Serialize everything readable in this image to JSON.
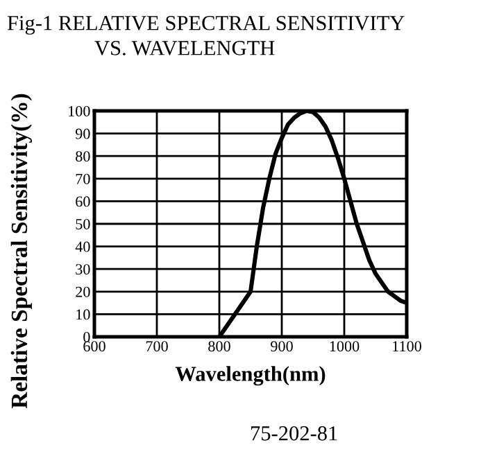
{
  "chart_data": {
    "type": "line",
    "title": "Fig-1 RELATIVE SPECTRAL SENSITIVITY\nVS. WAVELENGTH",
    "xlabel": "Wavelength(nm)",
    "ylabel": "Relative Spectral Sensitivity(%)",
    "x": [
      800,
      825,
      850,
      860,
      870,
      880,
      890,
      900,
      910,
      920,
      930,
      940,
      950,
      960,
      970,
      980,
      990,
      1000,
      1010,
      1020,
      1030,
      1040,
      1050,
      1060,
      1070,
      1080,
      1090,
      1100
    ],
    "series": [
      {
        "color": "#000000",
        "values": [
          0,
          10,
          20,
          40,
          57,
          70,
          81,
          88,
          94,
          97,
          99,
          100,
          99.5,
          97,
          93,
          87,
          79,
          70,
          60,
          50,
          42,
          34,
          28,
          24,
          20,
          18,
          16,
          15
        ]
      }
    ],
    "xlim": [
      600,
      1100
    ],
    "ylim": [
      0,
      100
    ],
    "xticks": [
      600,
      700,
      800,
      900,
      1000,
      1100
    ],
    "yticks": [
      0,
      10,
      20,
      30,
      40,
      50,
      60,
      70,
      80,
      90,
      100
    ],
    "grid": true,
    "legend": false,
    "marker": "none",
    "line_style": "solid",
    "annotations": [
      "75-202-81"
    ]
  }
}
